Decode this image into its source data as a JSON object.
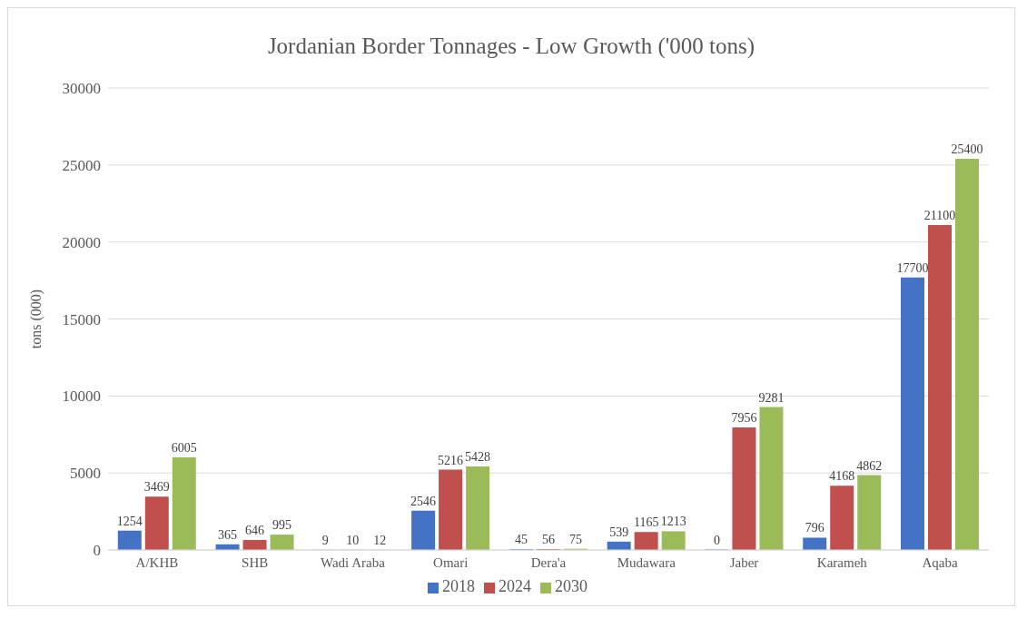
{
  "chart_data": {
    "type": "bar",
    "title": "Jordanian Border Tonnages - Low Growth ('000 tons)",
    "ylabel": "tons (000)",
    "categories": [
      "A/KHB",
      "SHB",
      "Wadi Araba",
      "Omari",
      "Dera'a",
      "Mudawara",
      "Jaber",
      "Karameh",
      "Aqaba"
    ],
    "series": [
      {
        "name": "2018",
        "color": "#4472c4",
        "values": [
          1254,
          365,
          9,
          2546,
          45,
          539,
          0,
          796,
          17700
        ]
      },
      {
        "name": "2024",
        "color": "#c0504d",
        "values": [
          3469,
          646,
          10,
          5216,
          56,
          1165,
          7956,
          4168,
          21100
        ]
      },
      {
        "name": "2030",
        "color": "#9bbb59",
        "values": [
          6005,
          995,
          12,
          5428,
          75,
          1213,
          9281,
          4862,
          25400
        ]
      }
    ],
    "ylim": [
      0,
      30000
    ],
    "yticks": [
      0,
      5000,
      10000,
      15000,
      20000,
      25000,
      30000
    ],
    "grid": "y",
    "legend": "bottom",
    "data_labels": true
  }
}
